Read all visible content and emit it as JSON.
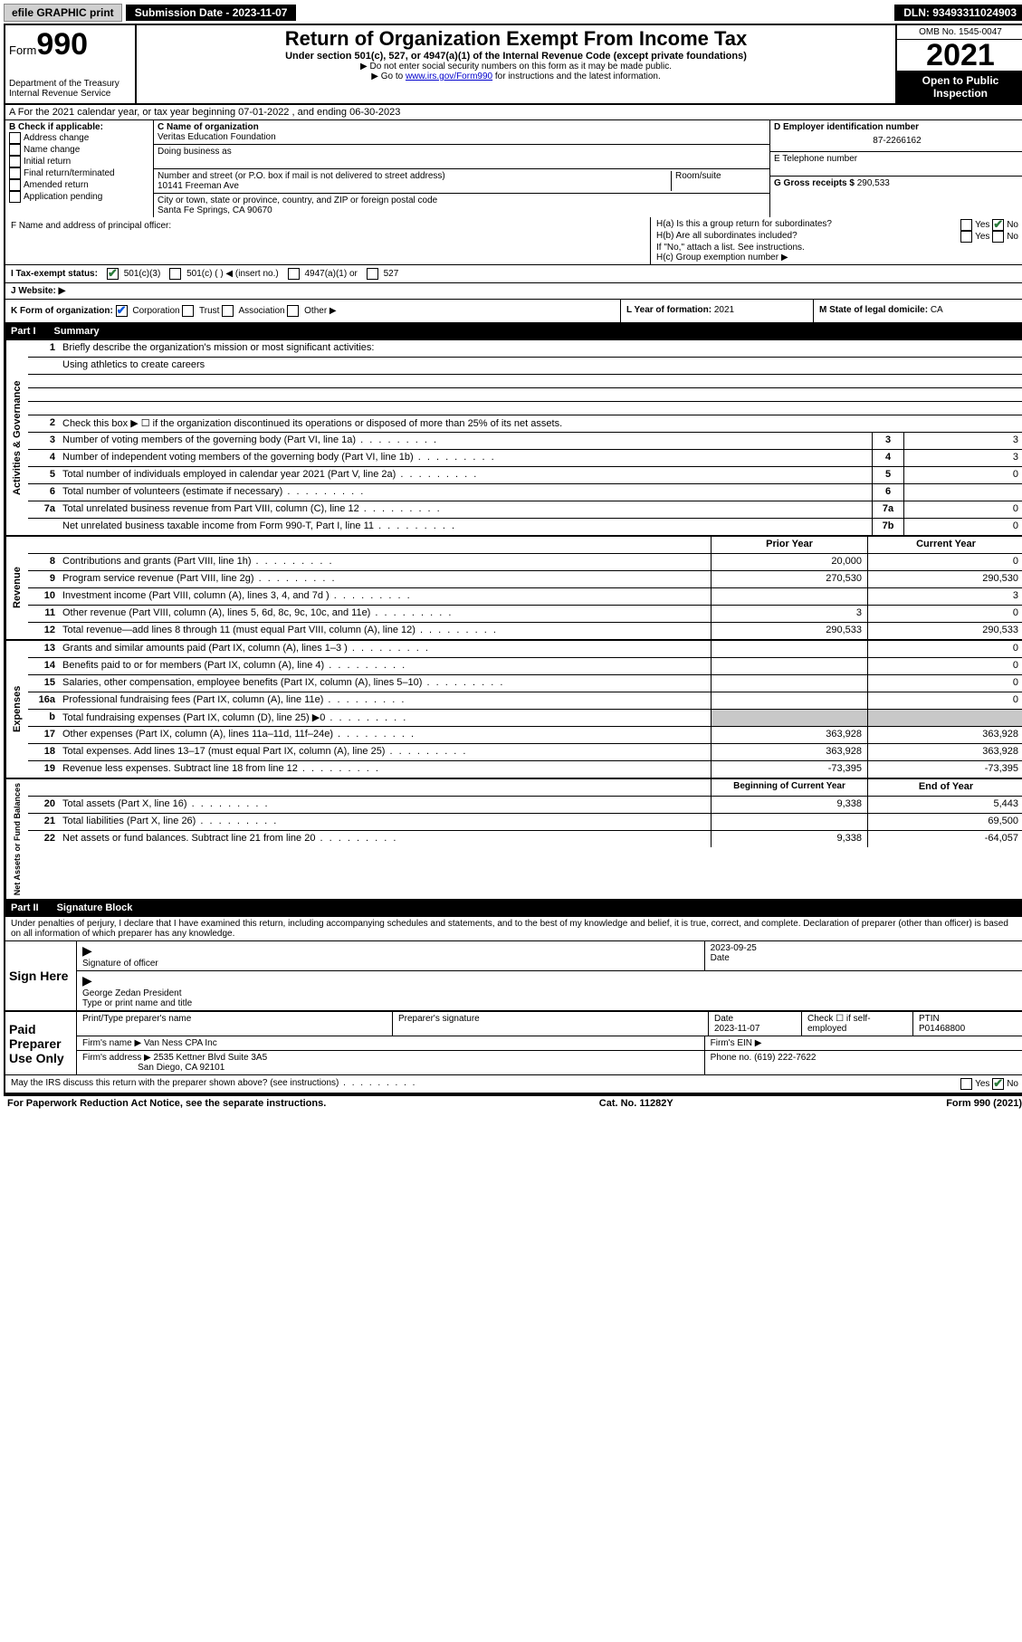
{
  "topbar": {
    "efile": "efile GRAPHIC print",
    "submission": "Submission Date - 2023-11-07",
    "dln": "DLN: 93493311024903"
  },
  "header": {
    "form_label": "Form",
    "form_number": "990",
    "title": "Return of Organization Exempt From Income Tax",
    "subtitle": "Under section 501(c), 527, or 4947(a)(1) of the Internal Revenue Code (except private foundations)",
    "note1": "▶ Do not enter social security numbers on this form as it may be made public.",
    "note2_pre": "▶ Go to ",
    "note2_link": "www.irs.gov/Form990",
    "note2_post": " for instructions and the latest information.",
    "dept": "Department of the Treasury",
    "irs": "Internal Revenue Service",
    "omb": "OMB No. 1545-0047",
    "year": "2021",
    "open": "Open to Public Inspection"
  },
  "row_a": "A For the 2021 calendar year, or tax year beginning 07-01-2022 , and ending 06-30-2023",
  "col_b": {
    "label": "B Check if applicable:",
    "items": [
      "Address change",
      "Name change",
      "Initial return",
      "Final return/terminated",
      "Amended return",
      "Application pending"
    ]
  },
  "col_c": {
    "name_label": "C Name of organization",
    "name": "Veritas Education Foundation",
    "dba_label": "Doing business as",
    "addr_label": "Number and street (or P.O. box if mail is not delivered to street address)",
    "room_label": "Room/suite",
    "addr": "10141 Freeman Ave",
    "city_label": "City or town, state or province, country, and ZIP or foreign postal code",
    "city": "Santa Fe Springs, CA  90670"
  },
  "col_d": {
    "ein_label": "D Employer identification number",
    "ein": "87-2266162",
    "tel_label": "E Telephone number",
    "gross_label": "G Gross receipts $",
    "gross": "290,533"
  },
  "row_f": "F  Name and address of principal officer:",
  "row_h": {
    "ha": "H(a)  Is this a group return for subordinates?",
    "hb": "H(b)  Are all subordinates included?",
    "hb_note": "If \"No,\" attach a list. See instructions.",
    "hc": "H(c)  Group exemption number ▶",
    "yes": "Yes",
    "no": "No"
  },
  "row_i": {
    "label": "I   Tax-exempt status:",
    "o1": "501(c)(3)",
    "o2": "501(c) (  ) ◀ (insert no.)",
    "o3": "4947(a)(1) or",
    "o4": "527"
  },
  "row_j": "J   Website: ▶",
  "row_k": {
    "label": "K Form of organization:",
    "corp": "Corporation",
    "trust": "Trust",
    "assoc": "Association",
    "other": "Other ▶"
  },
  "row_l": {
    "label": "L Year of formation:",
    "val": "2021"
  },
  "row_m": {
    "label": "M State of legal domicile:",
    "val": "CA"
  },
  "part1": {
    "label": "Part I",
    "title": "Summary"
  },
  "summary": {
    "side_ag": "Activities & Governance",
    "side_rev": "Revenue",
    "side_exp": "Expenses",
    "side_na": "Net Assets or Fund Balances",
    "q1": "Briefly describe the organization's mission or most significant activities:",
    "mission": "Using athletics to create careers",
    "q2": "Check this box ▶ ☐ if the organization discontinued its operations or disposed of more than 25% of its net assets.",
    "rows_top": [
      {
        "n": "3",
        "d": "Number of voting members of the governing body (Part VI, line 1a)",
        "box": "3",
        "v": "3"
      },
      {
        "n": "4",
        "d": "Number of independent voting members of the governing body (Part VI, line 1b)",
        "box": "4",
        "v": "3"
      },
      {
        "n": "5",
        "d": "Total number of individuals employed in calendar year 2021 (Part V, line 2a)",
        "box": "5",
        "v": "0"
      },
      {
        "n": "6",
        "d": "Total number of volunteers (estimate if necessary)",
        "box": "6",
        "v": ""
      },
      {
        "n": "7a",
        "d": "Total unrelated business revenue from Part VIII, column (C), line 12",
        "box": "7a",
        "v": "0"
      },
      {
        "n": "",
        "d": "Net unrelated business taxable income from Form 990-T, Part I, line 11",
        "box": "7b",
        "v": "0"
      }
    ],
    "col_headers": {
      "prior": "Prior Year",
      "curr": "Current Year"
    },
    "rows_rev": [
      {
        "n": "8",
        "d": "Contributions and grants (Part VIII, line 1h)",
        "p": "20,000",
        "c": "0"
      },
      {
        "n": "9",
        "d": "Program service revenue (Part VIII, line 2g)",
        "p": "270,530",
        "c": "290,530"
      },
      {
        "n": "10",
        "d": "Investment income (Part VIII, column (A), lines 3, 4, and 7d )",
        "p": "",
        "c": "3"
      },
      {
        "n": "11",
        "d": "Other revenue (Part VIII, column (A), lines 5, 6d, 8c, 9c, 10c, and 11e)",
        "p": "3",
        "c": "0"
      },
      {
        "n": "12",
        "d": "Total revenue—add lines 8 through 11 (must equal Part VIII, column (A), line 12)",
        "p": "290,533",
        "c": "290,533"
      }
    ],
    "rows_exp": [
      {
        "n": "13",
        "d": "Grants and similar amounts paid (Part IX, column (A), lines 1–3 )",
        "p": "",
        "c": "0"
      },
      {
        "n": "14",
        "d": "Benefits paid to or for members (Part IX, column (A), line 4)",
        "p": "",
        "c": "0"
      },
      {
        "n": "15",
        "d": "Salaries, other compensation, employee benefits (Part IX, column (A), lines 5–10)",
        "p": "",
        "c": "0"
      },
      {
        "n": "16a",
        "d": "Professional fundraising fees (Part IX, column (A), line 11e)",
        "p": "",
        "c": "0"
      },
      {
        "n": "b",
        "d": "Total fundraising expenses (Part IX, column (D), line 25) ▶0",
        "p": "GRAY",
        "c": "GRAY"
      },
      {
        "n": "17",
        "d": "Other expenses (Part IX, column (A), lines 11a–11d, 11f–24e)",
        "p": "363,928",
        "c": "363,928"
      },
      {
        "n": "18",
        "d": "Total expenses. Add lines 13–17 (must equal Part IX, column (A), line 25)",
        "p": "363,928",
        "c": "363,928"
      },
      {
        "n": "19",
        "d": "Revenue less expenses. Subtract line 18 from line 12",
        "p": "-73,395",
        "c": "-73,395"
      }
    ],
    "col_headers2": {
      "prior": "Beginning of Current Year",
      "curr": "End of Year"
    },
    "rows_na": [
      {
        "n": "20",
        "d": "Total assets (Part X, line 16)",
        "p": "9,338",
        "c": "5,443"
      },
      {
        "n": "21",
        "d": "Total liabilities (Part X, line 26)",
        "p": "",
        "c": "69,500"
      },
      {
        "n": "22",
        "d": "Net assets or fund balances. Subtract line 21 from line 20",
        "p": "9,338",
        "c": "-64,057"
      }
    ]
  },
  "part2": {
    "label": "Part II",
    "title": "Signature Block"
  },
  "sig": {
    "declaration": "Under penalties of perjury, I declare that I have examined this return, including accompanying schedules and statements, and to the best of my knowledge and belief, it is true, correct, and complete. Declaration of preparer (other than officer) is based on all information of which preparer has any knowledge.",
    "sign_here": "Sign Here",
    "sig_officer": "Signature of officer",
    "date_label": "Date",
    "date_val": "2023-09-25",
    "officer_name": "George Zedan  President",
    "name_label": "Type or print name and title",
    "paid": "Paid Preparer Use Only",
    "prep_name_label": "Print/Type preparer's name",
    "prep_sig_label": "Preparer's signature",
    "prep_date_label": "Date",
    "prep_date": "2023-11-07",
    "check_label": "Check ☐ if self-employed",
    "ptin_label": "PTIN",
    "ptin": "P01468800",
    "firm_name_label": "Firm's name    ▶",
    "firm_name": "Van Ness CPA Inc",
    "firm_ein_label": "Firm's EIN ▶",
    "firm_addr_label": "Firm's address ▶",
    "firm_addr1": "2535 Kettner Blvd Suite 3A5",
    "firm_addr2": "San Diego, CA  92101",
    "phone_label": "Phone no.",
    "phone": "(619) 222-7622",
    "discuss": "May the IRS discuss this return with the preparer shown above? (see instructions)",
    "yes": "Yes",
    "no": "No"
  },
  "footer": {
    "left": "For Paperwork Reduction Act Notice, see the separate instructions.",
    "mid": "Cat. No. 11282Y",
    "right": "Form 990 (2021)"
  }
}
